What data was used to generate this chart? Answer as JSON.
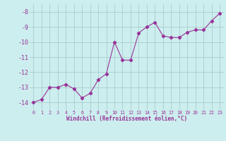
{
  "x": [
    0,
    1,
    2,
    3,
    4,
    5,
    6,
    7,
    8,
    9,
    10,
    11,
    12,
    13,
    14,
    15,
    16,
    17,
    18,
    19,
    20,
    21,
    22,
    23
  ],
  "y": [
    -14.0,
    -13.8,
    -13.0,
    -13.0,
    -12.8,
    -13.1,
    -13.7,
    -13.4,
    -12.5,
    -12.1,
    -10.0,
    -11.2,
    -11.2,
    -9.4,
    -9.0,
    -8.7,
    -9.6,
    -9.7,
    -9.7,
    -9.35,
    -9.2,
    -9.2,
    -8.6,
    -8.1
  ],
  "line_color": "#993399",
  "marker": "D",
  "marker_size": 2.2,
  "bg_color": "#cceeee",
  "grid_color": "#aacccc",
  "tick_color": "#993399",
  "label_color": "#993399",
  "xlabel": "Windchill (Refroidissement éolien,°C)",
  "ylim": [
    -14.5,
    -7.5
  ],
  "xlim": [
    -0.5,
    23.5
  ],
  "yticks": [
    -14,
    -13,
    -12,
    -11,
    -10,
    -9,
    -8
  ],
  "xticks": [
    0,
    1,
    2,
    3,
    4,
    5,
    6,
    7,
    8,
    9,
    10,
    11,
    12,
    13,
    14,
    15,
    16,
    17,
    18,
    19,
    20,
    21,
    22,
    23
  ]
}
